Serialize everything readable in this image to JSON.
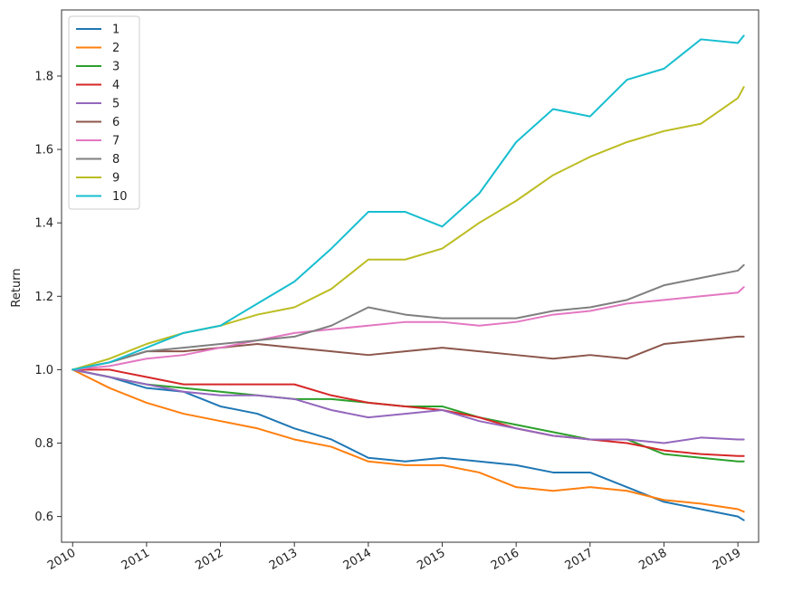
{
  "chart_data": {
    "type": "line",
    "title": "",
    "xlabel": "",
    "ylabel": "Return",
    "xlim": [
      2009.85,
      2019.28
    ],
    "ylim": [
      0.53,
      1.98
    ],
    "x_ticks": [
      2010,
      2011,
      2012,
      2013,
      2014,
      2015,
      2016,
      2017,
      2018,
      2019
    ],
    "x_tick_labels": [
      "2010",
      "2011",
      "2012",
      "2013",
      "2014",
      "2015",
      "2016",
      "2017",
      "2018",
      "2019"
    ],
    "y_ticks": [
      0.6,
      0.8,
      1.0,
      1.2,
      1.4,
      1.6,
      1.8
    ],
    "y_tick_labels": [
      "0.6",
      "0.8",
      "1.0",
      "1.2",
      "1.4",
      "1.6",
      "1.8"
    ],
    "grid": false,
    "legend_position": "top-left",
    "x": [
      2010.0,
      2010.5,
      2011.0,
      2011.5,
      2012.0,
      2012.5,
      2013.0,
      2013.5,
      2014.0,
      2014.5,
      2015.0,
      2015.5,
      2016.0,
      2016.5,
      2017.0,
      2017.5,
      2018.0,
      2018.5,
      2019.0,
      2019.08
    ],
    "series": [
      {
        "name": "1",
        "color": "#1f77b4",
        "values": [
          1.0,
          0.98,
          0.95,
          0.94,
          0.9,
          0.88,
          0.84,
          0.81,
          0.76,
          0.75,
          0.76,
          0.75,
          0.74,
          0.72,
          0.72,
          0.68,
          0.64,
          0.62,
          0.6,
          0.59
        ]
      },
      {
        "name": "2",
        "color": "#ff7f0e",
        "values": [
          1.0,
          0.95,
          0.91,
          0.88,
          0.86,
          0.84,
          0.81,
          0.79,
          0.75,
          0.74,
          0.74,
          0.72,
          0.68,
          0.67,
          0.68,
          0.67,
          0.645,
          0.635,
          0.62,
          0.613
        ]
      },
      {
        "name": "3",
        "color": "#2ca02c",
        "values": [
          1.0,
          0.98,
          0.96,
          0.95,
          0.94,
          0.93,
          0.92,
          0.92,
          0.91,
          0.9,
          0.9,
          0.87,
          0.85,
          0.83,
          0.81,
          0.81,
          0.77,
          0.76,
          0.75,
          0.75
        ]
      },
      {
        "name": "4",
        "color": "#d62728",
        "values": [
          1.0,
          1.0,
          0.98,
          0.96,
          0.96,
          0.96,
          0.96,
          0.93,
          0.91,
          0.9,
          0.89,
          0.87,
          0.84,
          0.82,
          0.81,
          0.8,
          0.78,
          0.77,
          0.765,
          0.765
        ]
      },
      {
        "name": "5",
        "color": "#9467bd",
        "values": [
          1.0,
          0.98,
          0.96,
          0.94,
          0.93,
          0.93,
          0.92,
          0.89,
          0.87,
          0.88,
          0.89,
          0.86,
          0.84,
          0.82,
          0.81,
          0.81,
          0.8,
          0.815,
          0.81,
          0.81
        ]
      },
      {
        "name": "6",
        "color": "#8c564b",
        "values": [
          1.0,
          1.02,
          1.05,
          1.05,
          1.06,
          1.07,
          1.06,
          1.05,
          1.04,
          1.05,
          1.06,
          1.05,
          1.04,
          1.03,
          1.04,
          1.03,
          1.07,
          1.08,
          1.09,
          1.09
        ]
      },
      {
        "name": "7",
        "color": "#e377c2",
        "values": [
          1.0,
          1.01,
          1.03,
          1.04,
          1.06,
          1.08,
          1.1,
          1.11,
          1.12,
          1.13,
          1.13,
          1.12,
          1.13,
          1.15,
          1.16,
          1.18,
          1.19,
          1.2,
          1.21,
          1.225
        ]
      },
      {
        "name": "8",
        "color": "#7f7f7f",
        "values": [
          1.0,
          1.02,
          1.05,
          1.06,
          1.07,
          1.08,
          1.09,
          1.12,
          1.17,
          1.15,
          1.14,
          1.14,
          1.14,
          1.16,
          1.17,
          1.19,
          1.23,
          1.25,
          1.27,
          1.285
        ]
      },
      {
        "name": "9",
        "color": "#bcbd22",
        "values": [
          1.0,
          1.03,
          1.07,
          1.1,
          1.12,
          1.15,
          1.17,
          1.22,
          1.3,
          1.3,
          1.33,
          1.4,
          1.46,
          1.53,
          1.58,
          1.62,
          1.65,
          1.67,
          1.74,
          1.77
        ]
      },
      {
        "name": "10",
        "color": "#17becf",
        "values": [
          1.0,
          1.02,
          1.06,
          1.1,
          1.12,
          1.18,
          1.24,
          1.33,
          1.43,
          1.43,
          1.39,
          1.48,
          1.62,
          1.71,
          1.69,
          1.79,
          1.82,
          1.9,
          1.89,
          1.91
        ]
      }
    ]
  }
}
